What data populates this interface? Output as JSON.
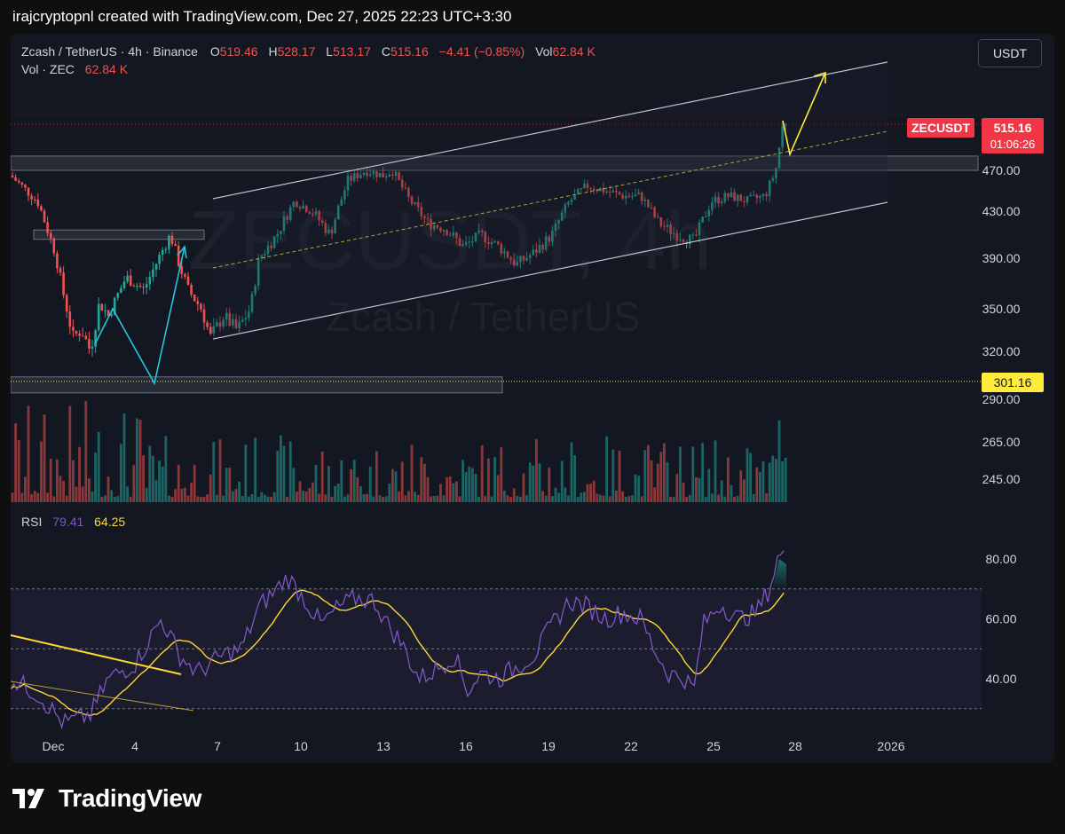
{
  "header": {
    "text": "irajcryptopnl created with TradingView.com, Dec 27, 2025 22:23 UTC+3:30"
  },
  "legend": {
    "symbol": "Zcash / TetherUS · 4h · Binance",
    "o_label": "O",
    "o": "519.46",
    "h_label": "H",
    "h": "528.17",
    "l_label": "L",
    "l": "513.17",
    "c_label": "C",
    "c": "515.16",
    "change": "−4.41 (−0.85%)",
    "vol_label": "Vol",
    "vol": "62.84 K",
    "vol_line_label": "Vol · ZEC",
    "vol_line_value": "62.84 K"
  },
  "currency_button": "USDT",
  "watermark": {
    "ticker": "ZECUSDT, 4h",
    "name": "Zcash / TetherUS"
  },
  "price_tag": {
    "symbol": "ZECUSDT",
    "price": "515.16",
    "countdown": "01:06:26"
  },
  "level_tag": "301.16",
  "rsi": {
    "label": "RSI",
    "value": "79.41",
    "ma_value": "64.25"
  },
  "footer": {
    "brand": "TradingView"
  },
  "colors": {
    "up": "#26a69a",
    "down": "#ef5350",
    "rsi": "#7e57c2",
    "rsi_ma": "#fdd835",
    "accent_yellow": "#ffeb3b"
  },
  "chart_data": [
    {
      "type": "candlestick",
      "title": "Zcash / TetherUS · 4h · Binance",
      "y_ticks": [
        "470.00",
        "430.00",
        "390.00",
        "350.00",
        "320.00",
        "290.00",
        "265.00",
        "245.00"
      ],
      "x_ticks": [
        "Dec",
        "4",
        "7",
        "10",
        "13",
        "16",
        "19",
        "22",
        "25",
        "28",
        "2026"
      ],
      "last_price": 515.16,
      "horizontal_level": 301.16,
      "zones": [
        {
          "label": "resistance zone",
          "low": 470,
          "high": 484
        },
        {
          "label": "support zone",
          "low": 294,
          "high": 304
        },
        {
          "label": "early range",
          "low": 406,
          "high": 414
        }
      ],
      "volume_series": "Vol · ZEC",
      "last_volume": "62.84 K"
    },
    {
      "type": "line",
      "title": "RSI",
      "y_ticks": [
        "80.00",
        "60.00",
        "40.00"
      ],
      "series": [
        {
          "name": "RSI",
          "last": 79.41
        },
        {
          "name": "",
          "last": 64.25
        }
      ],
      "bands": [
        70,
        50,
        30
      ],
      "ylim": [
        20,
        90
      ]
    }
  ]
}
